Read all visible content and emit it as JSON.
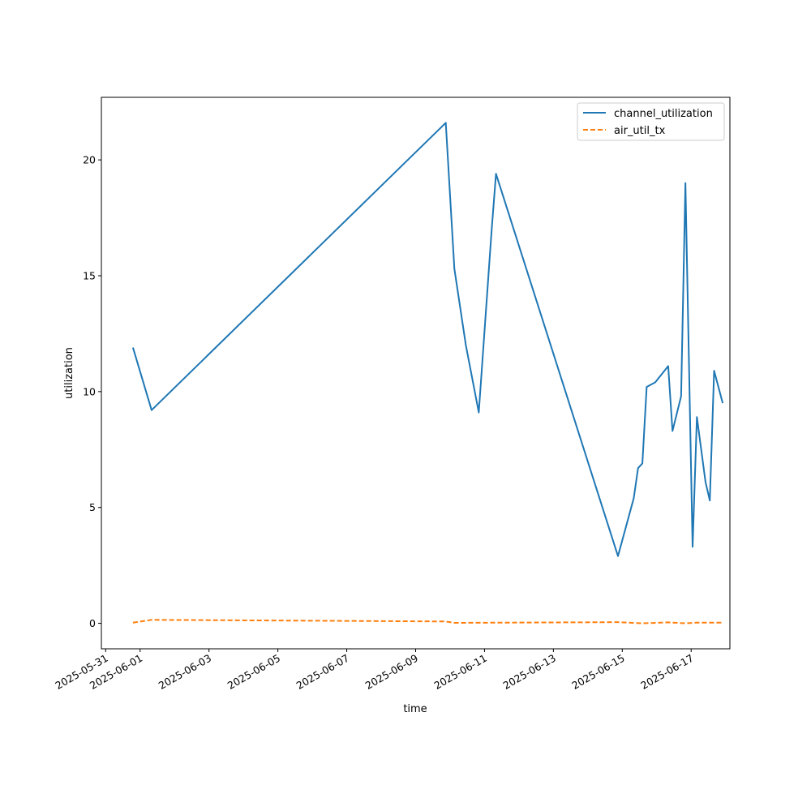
{
  "chart_data": {
    "type": "line",
    "xlabel": "time",
    "ylabel": "utilization",
    "x_ticks": [
      "2025-05-31",
      "2025-06-01",
      "2025-06-03",
      "2025-06-05",
      "2025-06-07",
      "2025-06-09",
      "2025-06-11",
      "2025-06-13",
      "2025-06-15",
      "2025-06-17"
    ],
    "y_ticks": [
      0,
      5,
      10,
      15,
      20
    ],
    "xlim": [
      "2025-05-30T21:00",
      "2025-06-18T03:00"
    ],
    "ylim": [
      -1.1,
      22.7
    ],
    "grid": false,
    "legend": "upper right",
    "series": [
      {
        "name": "channel_utilization",
        "color": "#1f77b4",
        "style": "solid",
        "points": [
          [
            "2025-05-31T19:00",
            11.9
          ],
          [
            "2025-06-01T08:00",
            9.2
          ],
          [
            "2025-06-09T21:00",
            21.6
          ],
          [
            "2025-06-10T03:00",
            15.3
          ],
          [
            "2025-06-10T11:00",
            12.0
          ],
          [
            "2025-06-10T20:00",
            9.1
          ],
          [
            "2025-06-11T05:00",
            17.0
          ],
          [
            "2025-06-11T08:00",
            19.4
          ],
          [
            "2025-06-14T21:00",
            2.9
          ],
          [
            "2025-06-15T08:00",
            5.4
          ],
          [
            "2025-06-15T11:00",
            6.7
          ],
          [
            "2025-06-15T14:00",
            6.9
          ],
          [
            "2025-06-15T17:00",
            10.2
          ],
          [
            "2025-06-15T23:00",
            10.4
          ],
          [
            "2025-06-16T08:00",
            11.1
          ],
          [
            "2025-06-16T11:00",
            8.3
          ],
          [
            "2025-06-16T17:00",
            9.8
          ],
          [
            "2025-06-16T20:00",
            19.0
          ],
          [
            "2025-06-17T01:00",
            3.3
          ],
          [
            "2025-06-17T04:00",
            8.9
          ],
          [
            "2025-06-17T10:00",
            6.1
          ],
          [
            "2025-06-17T13:00",
            5.3
          ],
          [
            "2025-06-17T16:00",
            10.9
          ],
          [
            "2025-06-17T22:00",
            9.5
          ]
        ]
      },
      {
        "name": "air_util_tx",
        "color": "#ff7f0e",
        "style": "dashed",
        "points": [
          [
            "2025-05-31T19:00",
            0.03
          ],
          [
            "2025-06-01T08:00",
            0.15
          ],
          [
            "2025-06-09T21:00",
            0.08
          ],
          [
            "2025-06-10T03:00",
            0.02
          ],
          [
            "2025-06-14T21:00",
            0.05
          ],
          [
            "2025-06-15T14:00",
            0.0
          ],
          [
            "2025-06-16T08:00",
            0.04
          ],
          [
            "2025-06-16T20:00",
            0.0
          ],
          [
            "2025-06-17T04:00",
            0.03
          ],
          [
            "2025-06-17T22:00",
            0.03
          ]
        ]
      }
    ]
  }
}
